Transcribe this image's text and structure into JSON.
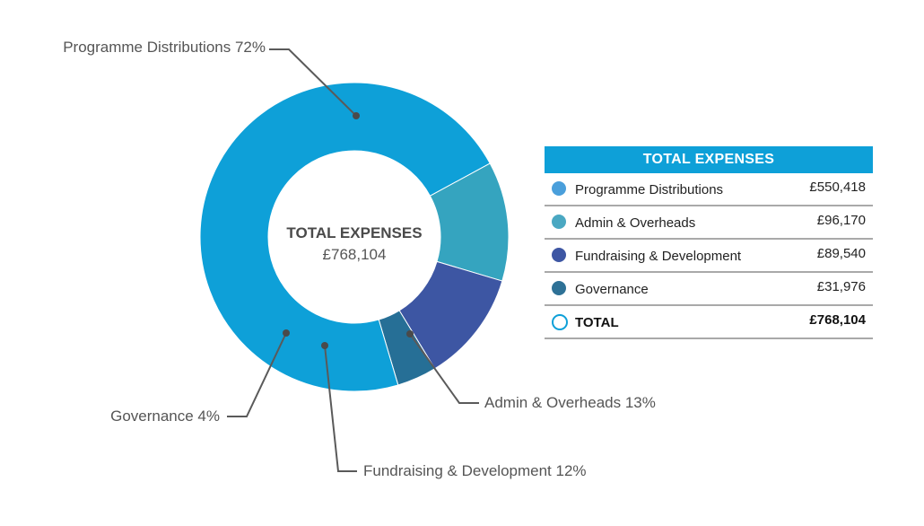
{
  "chart_data": {
    "type": "pie",
    "variant": "donut",
    "center": {
      "title": "TOTAL EXPENSES",
      "value": "£768,104"
    },
    "slices": [
      {
        "name": "Programme Distributions",
        "value": 550418,
        "percent_label": "Programme Distributions 72%",
        "color": "#0ea0d8"
      },
      {
        "name": "Admin & Overheads",
        "value": 96170,
        "percent_label": "Admin & Overheads 13%",
        "color": "#35a4bf"
      },
      {
        "name": "Fundraising & Development",
        "value": 89540,
        "percent_label": "Fundraising & Development 12%",
        "color": "#3d56a3"
      },
      {
        "name": "Governance",
        "value": 31976,
        "percent_label": "Governance 4%",
        "color": "#266f96"
      }
    ]
  },
  "legend": {
    "title": "TOTAL EXPENSES",
    "rows": [
      {
        "label": "Programme Distributions",
        "amount": "£550,418",
        "color": "#4a9fdb"
      },
      {
        "label": "Admin & Overheads",
        "amount": "£96,170",
        "color": "#4aa8c2"
      },
      {
        "label": "Fundraising & Development",
        "amount": "£89,540",
        "color": "#3d56a3"
      },
      {
        "label": "Governance",
        "amount": "£31,976",
        "color": "#2e7196"
      }
    ],
    "total": {
      "label": "TOTAL",
      "amount": "£768,104",
      "color": "#0ea0d8"
    }
  }
}
